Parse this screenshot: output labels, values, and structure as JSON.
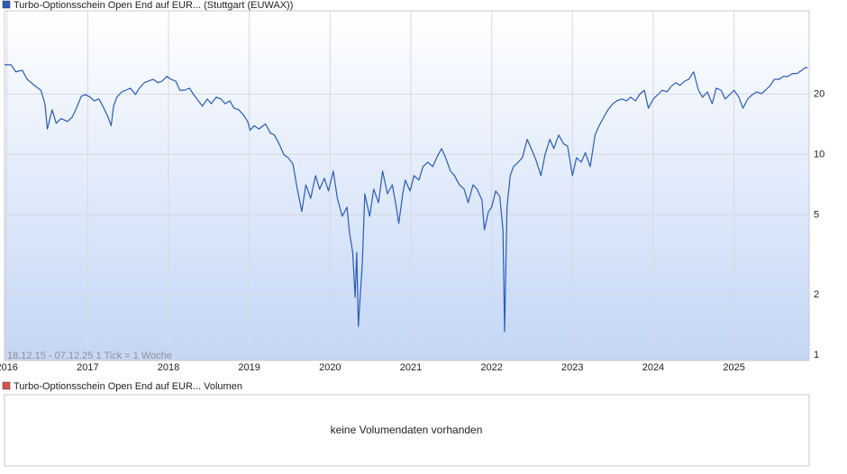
{
  "chart_data": {
    "type": "line",
    "subtitle": "18.12.15 - 07.12.25   1 Tick = 1 Woche",
    "yscale": "log",
    "grid": true,
    "xlim": [
      2015.97,
      2025.93
    ],
    "xticks": [
      2016,
      2017,
      2018,
      2019,
      2020,
      2021,
      2022,
      2023,
      2024,
      2025
    ],
    "ylim": [
      0.94,
      52
    ],
    "yticks": [
      1,
      2,
      5,
      10,
      20
    ],
    "x": [
      2015.97,
      2016.05,
      2016.11,
      2016.19,
      2016.25,
      2016.34,
      2016.42,
      2016.47,
      2016.5,
      2016.56,
      2016.61,
      2016.67,
      2016.75,
      2016.81,
      2016.86,
      2016.92,
      2016.97,
      2017.03,
      2017.08,
      2017.14,
      2017.2,
      2017.25,
      2017.29,
      2017.32,
      2017.36,
      2017.42,
      2017.47,
      2017.53,
      2017.59,
      2017.64,
      2017.7,
      2017.75,
      2017.81,
      2017.87,
      2017.92,
      2017.98,
      2018.03,
      2018.09,
      2018.14,
      2018.2,
      2018.26,
      2018.31,
      2018.37,
      2018.42,
      2018.48,
      2018.53,
      2018.59,
      2018.65,
      2018.7,
      2018.76,
      2018.81,
      2018.87,
      2018.93,
      2018.98,
      2019.01,
      2019.06,
      2019.12,
      2019.2,
      2019.26,
      2019.31,
      2019.37,
      2019.43,
      2019.48,
      2019.54,
      2019.59,
      2019.65,
      2019.7,
      2019.76,
      2019.82,
      2019.87,
      2019.93,
      2019.98,
      2020.04,
      2020.09,
      2020.15,
      2020.21,
      2020.24,
      2020.28,
      2020.31,
      2020.33,
      2020.35,
      2020.4,
      2020.43,
      2020.49,
      2020.54,
      2020.6,
      2020.65,
      2020.71,
      2020.77,
      2020.82,
      2020.85,
      2020.9,
      2020.93,
      2020.99,
      2021.04,
      2021.1,
      2021.15,
      2021.21,
      2021.27,
      2021.32,
      2021.38,
      2021.43,
      2021.49,
      2021.54,
      2021.6,
      2021.66,
      2021.71,
      2021.77,
      2021.82,
      2021.88,
      2021.91,
      2021.96,
      2022.0,
      2022.05,
      2022.1,
      2022.14,
      2022.16,
      2022.19,
      2022.23,
      2022.27,
      2022.33,
      2022.38,
      2022.44,
      2022.49,
      2022.55,
      2022.61,
      2022.66,
      2022.72,
      2022.77,
      2022.83,
      2022.89,
      2022.94,
      2023.0,
      2023.05,
      2023.11,
      2023.16,
      2023.22,
      2023.28,
      2023.33,
      2023.39,
      2023.44,
      2023.5,
      2023.55,
      2023.61,
      2023.67,
      2023.72,
      2023.78,
      2023.83,
      2023.89,
      2023.94,
      2024.0,
      2024.06,
      2024.11,
      2024.17,
      2024.22,
      2024.28,
      2024.33,
      2024.39,
      2024.44,
      2024.5,
      2024.56,
      2024.61,
      2024.67,
      2024.73,
      2024.78,
      2024.84,
      2024.89,
      2024.95,
      2025.0,
      2025.06,
      2025.11,
      2025.17,
      2025.23,
      2025.28,
      2025.34,
      2025.39,
      2025.45,
      2025.5,
      2025.56,
      2025.61,
      2025.67,
      2025.72,
      2025.78,
      2025.84,
      2025.89,
      2025.91
    ],
    "series": [
      {
        "name": "Turbo-Optionsschein Open End auf EUR... (Stuttgart (EUWAX))",
        "color": "#2a5cb8",
        "values": [
          28.0,
          28.0,
          25.8,
          26.3,
          23.7,
          22.1,
          20.9,
          17.9,
          13.4,
          16.7,
          14.3,
          15.1,
          14.6,
          15.4,
          17.0,
          19.5,
          19.9,
          19.3,
          18.5,
          18.9,
          17.0,
          15.4,
          13.9,
          17.4,
          19.3,
          20.5,
          20.9,
          21.4,
          19.9,
          21.4,
          22.8,
          23.2,
          23.7,
          22.8,
          23.2,
          24.5,
          23.7,
          23.2,
          20.9,
          20.9,
          21.4,
          19.9,
          18.5,
          17.4,
          18.9,
          17.9,
          19.3,
          18.9,
          17.9,
          18.5,
          17.0,
          16.7,
          15.7,
          14.6,
          13.2,
          13.9,
          13.4,
          14.2,
          12.8,
          12.5,
          11.3,
          9.95,
          9.64,
          8.97,
          6.86,
          5.19,
          7.06,
          6.05,
          7.84,
          6.71,
          7.6,
          6.58,
          8.26,
          6.05,
          4.92,
          5.46,
          4.08,
          3.25,
          1.94,
          3.25,
          1.39,
          2.93,
          6.37,
          4.92,
          6.71,
          5.75,
          8.26,
          6.37,
          7.06,
          5.46,
          4.53,
          6.37,
          7.45,
          6.58,
          7.84,
          7.45,
          8.69,
          9.16,
          8.69,
          9.64,
          10.7,
          9.64,
          8.26,
          7.84,
          7.06,
          6.71,
          5.75,
          7.06,
          6.71,
          5.93,
          4.21,
          5.19,
          5.46,
          6.58,
          6.18,
          4.21,
          1.31,
          5.46,
          7.84,
          8.69,
          9.16,
          9.64,
          11.9,
          10.7,
          9.35,
          7.84,
          9.95,
          11.9,
          10.7,
          12.5,
          11.3,
          11.0,
          7.84,
          9.64,
          9.16,
          10.2,
          8.69,
          12.5,
          13.9,
          15.4,
          16.7,
          17.9,
          18.5,
          18.9,
          18.5,
          19.3,
          18.5,
          19.9,
          20.9,
          17.0,
          18.9,
          19.9,
          20.9,
          20.5,
          21.8,
          22.8,
          22.1,
          23.2,
          23.7,
          25.8,
          20.9,
          19.3,
          20.5,
          17.9,
          21.4,
          20.9,
          18.9,
          19.9,
          20.9,
          19.3,
          17.0,
          18.9,
          19.9,
          20.5,
          20.1,
          20.9,
          22.1,
          23.7,
          23.7,
          24.5,
          24.5,
          25.3,
          25.3,
          26.3,
          27.2,
          26.9
        ]
      }
    ]
  },
  "volume_panel": {
    "legend": "Turbo-Optionsschein Open End auf EUR... Volumen",
    "color": "#d9534f",
    "message": "keine Volumendaten vorhanden"
  }
}
